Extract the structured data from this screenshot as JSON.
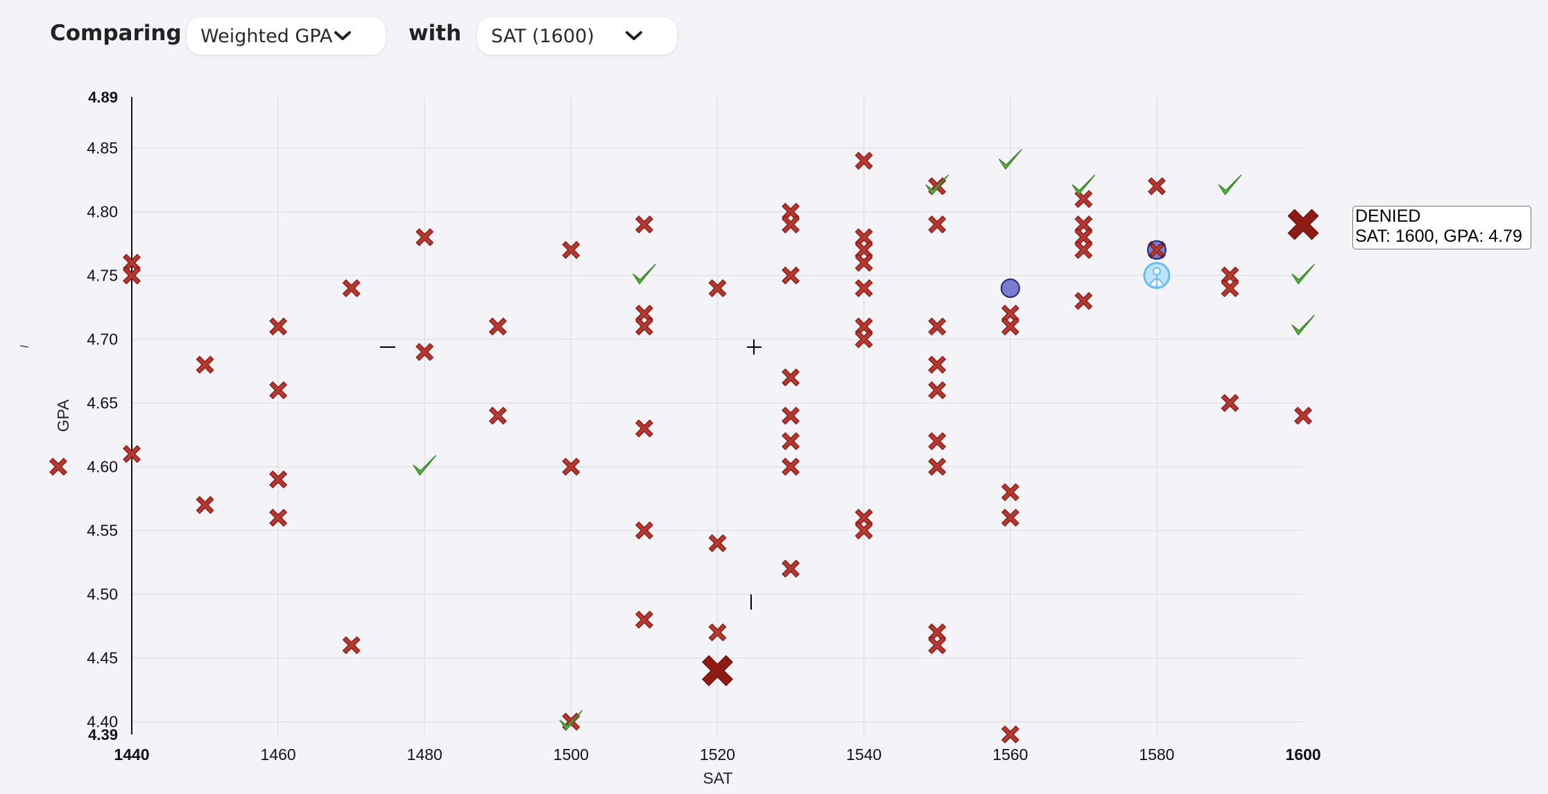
{
  "toolbar": {
    "comparing_label": "Comparing",
    "metric_select": {
      "value": "Weighted GPA"
    },
    "with_label": "with",
    "test_select": {
      "value": "SAT (1600)"
    }
  },
  "tooltip": {
    "status": "DENIED",
    "detail": "SAT: 1600, GPA: 4.79"
  },
  "colors": {
    "denied": "#b23a32",
    "denied_dark": "#8e1b14",
    "accepted": "#58b040",
    "waitlisted": "#7b7ccc",
    "you": "#6bbcf0",
    "grid": "#e1e1e6",
    "background": "#f4f3f8"
  },
  "legend_icons": {
    "outside_marker": "denied-x-icon",
    "you_marker": "person-icon"
  },
  "chart_data": {
    "type": "scatter",
    "xlabel": "SAT",
    "ylabel": "GPA",
    "xlim": [
      1440,
      1600
    ],
    "ylim": [
      4.39,
      4.89
    ],
    "x_ticks": [
      "1440",
      "1460",
      "1480",
      "1500",
      "1520",
      "1540",
      "1560",
      "1580",
      "1600"
    ],
    "y_ticks": [
      "4.89",
      "4.85",
      "4.80",
      "4.75",
      "4.70",
      "4.65",
      "4.60",
      "4.55",
      "4.50",
      "4.45",
      "4.40",
      "4.39"
    ],
    "grid": true,
    "series": [
      {
        "kind": "denied",
        "points": [
          [
            1440,
            4.76
          ],
          [
            1440,
            4.75
          ],
          [
            1440,
            4.61
          ],
          [
            1450,
            4.68
          ],
          [
            1450,
            4.57
          ],
          [
            1460,
            4.71
          ],
          [
            1460,
            4.66
          ],
          [
            1460,
            4.59
          ],
          [
            1460,
            4.56
          ],
          [
            1470,
            4.74
          ],
          [
            1470,
            4.46
          ],
          [
            1480,
            4.78
          ],
          [
            1480,
            4.69
          ],
          [
            1490,
            4.71
          ],
          [
            1490,
            4.64
          ],
          [
            1500,
            4.77
          ],
          [
            1500,
            4.6
          ],
          [
            1500,
            4.4
          ],
          [
            1510,
            4.79
          ],
          [
            1510,
            4.72
          ],
          [
            1510,
            4.71
          ],
          [
            1510,
            4.63
          ],
          [
            1510,
            4.55
          ],
          [
            1510,
            4.48
          ],
          [
            1520,
            4.74
          ],
          [
            1520,
            4.54
          ],
          [
            1520,
            4.47
          ],
          [
            1530,
            4.8
          ],
          [
            1530,
            4.79
          ],
          [
            1530,
            4.75
          ],
          [
            1530,
            4.67
          ],
          [
            1530,
            4.64
          ],
          [
            1530,
            4.62
          ],
          [
            1530,
            4.6
          ],
          [
            1530,
            4.52
          ],
          [
            1540,
            4.84
          ],
          [
            1540,
            4.78
          ],
          [
            1540,
            4.77
          ],
          [
            1540,
            4.76
          ],
          [
            1540,
            4.74
          ],
          [
            1540,
            4.71
          ],
          [
            1540,
            4.7
          ],
          [
            1540,
            4.56
          ],
          [
            1540,
            4.55
          ],
          [
            1550,
            4.82
          ],
          [
            1550,
            4.79
          ],
          [
            1550,
            4.71
          ],
          [
            1550,
            4.68
          ],
          [
            1550,
            4.66
          ],
          [
            1550,
            4.62
          ],
          [
            1550,
            4.6
          ],
          [
            1550,
            4.47
          ],
          [
            1550,
            4.46
          ],
          [
            1560,
            4.72
          ],
          [
            1560,
            4.71
          ],
          [
            1560,
            4.58
          ],
          [
            1560,
            4.56
          ],
          [
            1560,
            4.39
          ],
          [
            1570,
            4.81
          ],
          [
            1570,
            4.79
          ],
          [
            1570,
            4.78
          ],
          [
            1570,
            4.77
          ],
          [
            1570,
            4.73
          ],
          [
            1580,
            4.82
          ],
          [
            1580,
            4.77
          ],
          [
            1590,
            4.75
          ],
          [
            1590,
            4.74
          ],
          [
            1590,
            4.65
          ],
          [
            1600,
            4.64
          ]
        ]
      },
      {
        "kind": "denied-highlight",
        "points": [
          [
            1520,
            4.44
          ],
          [
            1600,
            4.79
          ]
        ]
      },
      {
        "kind": "accepted",
        "points": [
          [
            1480,
            4.6
          ],
          [
            1500,
            4.4
          ],
          [
            1510,
            4.75
          ],
          [
            1550,
            4.82
          ],
          [
            1560,
            4.84
          ],
          [
            1570,
            4.82
          ],
          [
            1590,
            4.82
          ],
          [
            1600,
            4.75
          ],
          [
            1600,
            4.71
          ]
        ]
      },
      {
        "kind": "waitlisted",
        "points": [
          [
            1560,
            4.74
          ],
          [
            1580,
            4.77
          ]
        ]
      },
      {
        "kind": "you",
        "points": [
          [
            1580,
            4.75
          ]
        ]
      }
    ],
    "outside_range_marker": {
      "kind": "denied",
      "side": "left",
      "gpa": 4.6
    }
  }
}
